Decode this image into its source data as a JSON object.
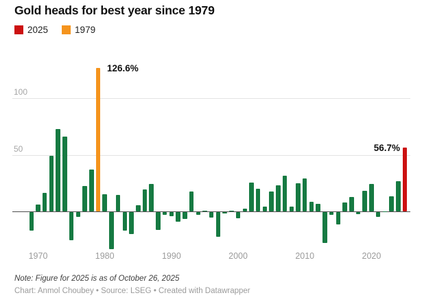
{
  "title": "Gold heads for best year since 1979",
  "legend": [
    {
      "label": "2025",
      "color": "#cc1111"
    },
    {
      "label": "1979",
      "color": "#f5941d"
    }
  ],
  "note": "Note: Figure for 2025 is as of October 26, 2025",
  "credit": "Chart: Anmol Choubey • Source: LSEG • Created with Datawrapper",
  "chart_data": {
    "type": "bar",
    "title": "Gold heads for best year since 1979",
    "ylabel": "",
    "xlabel": "",
    "unit": "%",
    "ylim": [
      -35,
      135
    ],
    "yticks": [
      50,
      100
    ],
    "xticks": [
      1970,
      1980,
      1990,
      2000,
      2010,
      2020
    ],
    "grid": "horizontal",
    "x": [
      1969,
      1970,
      1971,
      1972,
      1973,
      1974,
      1975,
      1976,
      1977,
      1978,
      1979,
      1980,
      1981,
      1982,
      1983,
      1984,
      1985,
      1986,
      1987,
      1988,
      1989,
      1990,
      1991,
      1992,
      1993,
      1994,
      1995,
      1996,
      1997,
      1998,
      1999,
      2000,
      2001,
      2002,
      2003,
      2004,
      2005,
      2006,
      2007,
      2008,
      2009,
      2010,
      2011,
      2012,
      2013,
      2014,
      2015,
      2016,
      2017,
      2018,
      2019,
      2020,
      2021,
      2022,
      2023,
      2024,
      2025
    ],
    "values": [
      -15.9,
      6.3,
      16.3,
      49.3,
      73.0,
      66.1,
      -24.8,
      -4.1,
      22.7,
      37.0,
      126.6,
      15.2,
      -32.6,
      14.9,
      -16.3,
      -19.2,
      5.8,
      19.5,
      24.5,
      -15.7,
      -2.2,
      -3.7,
      -8.6,
      -5.7,
      17.7,
      -2.2,
      1.0,
      -4.6,
      -21.4,
      -0.8,
      0.9,
      -5.4,
      2.5,
      25.6,
      19.9,
      4.6,
      17.8,
      23.2,
      31.9,
      4.3,
      25.0,
      29.2,
      8.9,
      7.0,
      -27.3,
      -2.2,
      -11.0,
      8.1,
      12.7,
      -1.5,
      18.4,
      24.6,
      -4.3,
      0.4,
      13.8,
      26.6,
      56.7
    ],
    "colors": {
      "default": "#167a42",
      "1979": "#f5941d",
      "2025": "#cc1111"
    },
    "annotations": [
      {
        "year": 1979,
        "label": "126.6%"
      },
      {
        "year": 2025,
        "label": "56.7%"
      }
    ],
    "legend_position": "top-left"
  }
}
